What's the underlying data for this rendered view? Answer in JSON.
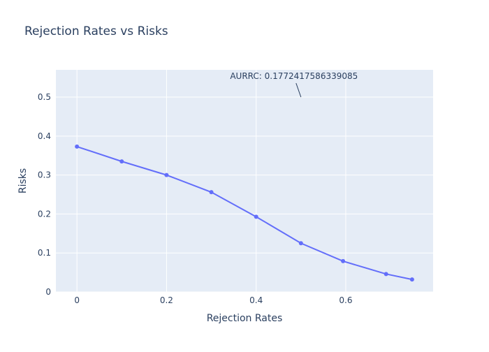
{
  "chart_data": {
    "type": "line",
    "title": "Rejection Rates vs Risks",
    "xlabel": "Rejection Rates",
    "ylabel": "Risks",
    "xlim": [
      -0.047,
      0.795
    ],
    "ylim": [
      0,
      0.57
    ],
    "x_ticks": [
      0,
      0.2,
      0.4,
      0.6
    ],
    "x_tick_labels": [
      "0",
      "0.2",
      "0.4",
      "0.6"
    ],
    "y_ticks": [
      0,
      0.1,
      0.2,
      0.3,
      0.4,
      0.5
    ],
    "y_tick_labels": [
      "0",
      "0.1",
      "0.2",
      "0.3",
      "0.4",
      "0.5"
    ],
    "grid": true,
    "series": [
      {
        "x": [
          0,
          0.1,
          0.2,
          0.3,
          0.4,
          0.5,
          0.594,
          0.69,
          0.748
        ],
        "y": [
          0.373,
          0.335,
          0.3,
          0.256,
          0.193,
          0.125,
          0.079,
          0.046,
          0.032
        ],
        "color": "#636efa"
      }
    ],
    "annotations": [
      {
        "text": "AURRC: 0.1772417586339085",
        "x": 0.5,
        "y": 0.5,
        "arrow": true
      }
    ],
    "colors": {
      "plot_background": "#e5ecf6",
      "grid": "#ffffff",
      "text": "#2a3f5f",
      "line": "#636efa"
    }
  }
}
